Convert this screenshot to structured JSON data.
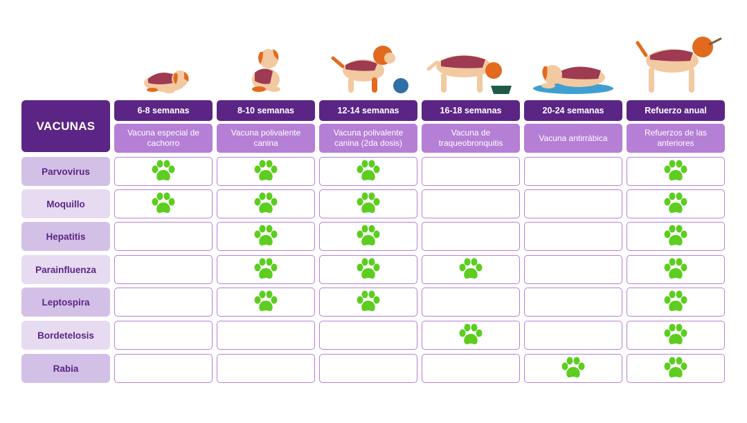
{
  "title": "VACUNAS",
  "colors": {
    "header": "#5b2585",
    "subheader": "#b57fd6",
    "paw": "#5dcd1f",
    "row_dark": "#d3c0e6",
    "row_light": "#e6dbf0"
  },
  "columns": [
    {
      "label": "6-8 semanas",
      "desc": "Vacuna especial de cachorro"
    },
    {
      "label": "8-10 semanas",
      "desc": "Vacuna polivalente canina"
    },
    {
      "label": "12-14 semanas",
      "desc": "Vacuna polivalente canina (2da dosis)"
    },
    {
      "label": "16-18 semanas",
      "desc": "Vacuna de traqueobronquitis"
    },
    {
      "label": "20-24 semanas",
      "desc": "Vacuna antirrábica"
    },
    {
      "label": "Refuerzo anual",
      "desc": "Refuerzos de las anteriores"
    }
  ],
  "rows": [
    {
      "label": "Parvovirus",
      "marks": [
        true,
        true,
        true,
        false,
        false,
        true
      ]
    },
    {
      "label": "Moquillo",
      "marks": [
        true,
        true,
        true,
        false,
        false,
        true
      ]
    },
    {
      "label": "Hepatitis",
      "marks": [
        false,
        true,
        true,
        false,
        false,
        true
      ]
    },
    {
      "label": "Parainfluenza",
      "marks": [
        false,
        true,
        true,
        true,
        false,
        true
      ]
    },
    {
      "label": "Leptospira",
      "marks": [
        false,
        true,
        true,
        false,
        false,
        true
      ]
    },
    {
      "label": "Bordetelosis",
      "marks": [
        false,
        false,
        false,
        true,
        false,
        true
      ]
    },
    {
      "label": "Rabia",
      "marks": [
        false,
        false,
        false,
        false,
        true,
        true
      ]
    }
  ],
  "icons": {
    "mark": "paw-icon",
    "illustrations": [
      "puppy-sleeping-icon",
      "puppy-sitting-icon",
      "dog-playing-ball-icon",
      "dog-eating-icon",
      "dog-lying-bed-icon",
      "dog-walking-stick-icon"
    ]
  }
}
